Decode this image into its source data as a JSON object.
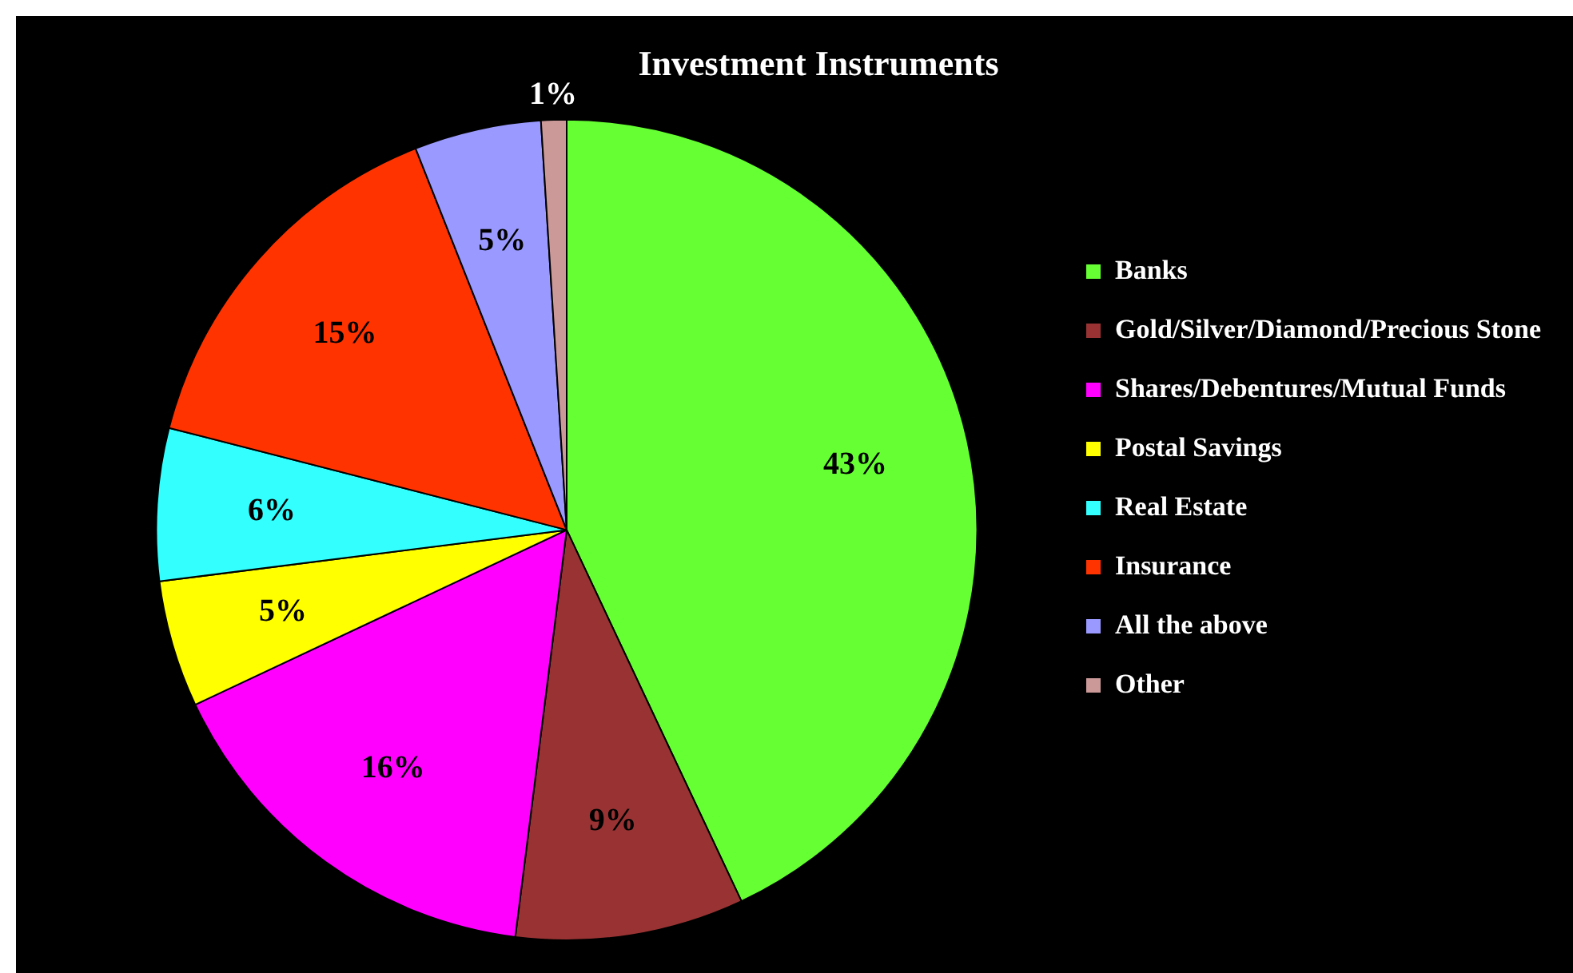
{
  "chart_data": {
    "type": "pie",
    "title": "Investment Instruments",
    "categories": [
      "Banks",
      "Gold/Silver/Diamond/Precious Stone",
      "Shares/Debentures/Mutual Funds",
      "Postal Savings",
      "Real Estate",
      "Insurance",
      "All the above",
      "Other"
    ],
    "values": [
      43,
      9,
      16,
      5,
      6,
      15,
      5,
      1
    ],
    "value_labels": [
      "43%",
      "9%",
      "16%",
      "5%",
      "6%",
      "15%",
      "5%",
      "1%"
    ],
    "colors": [
      "#66ff33",
      "#993333",
      "#ff00ff",
      "#ffff00",
      "#33ffff",
      "#ff3300",
      "#9999ff",
      "#cc9999"
    ],
    "legend": "right"
  }
}
